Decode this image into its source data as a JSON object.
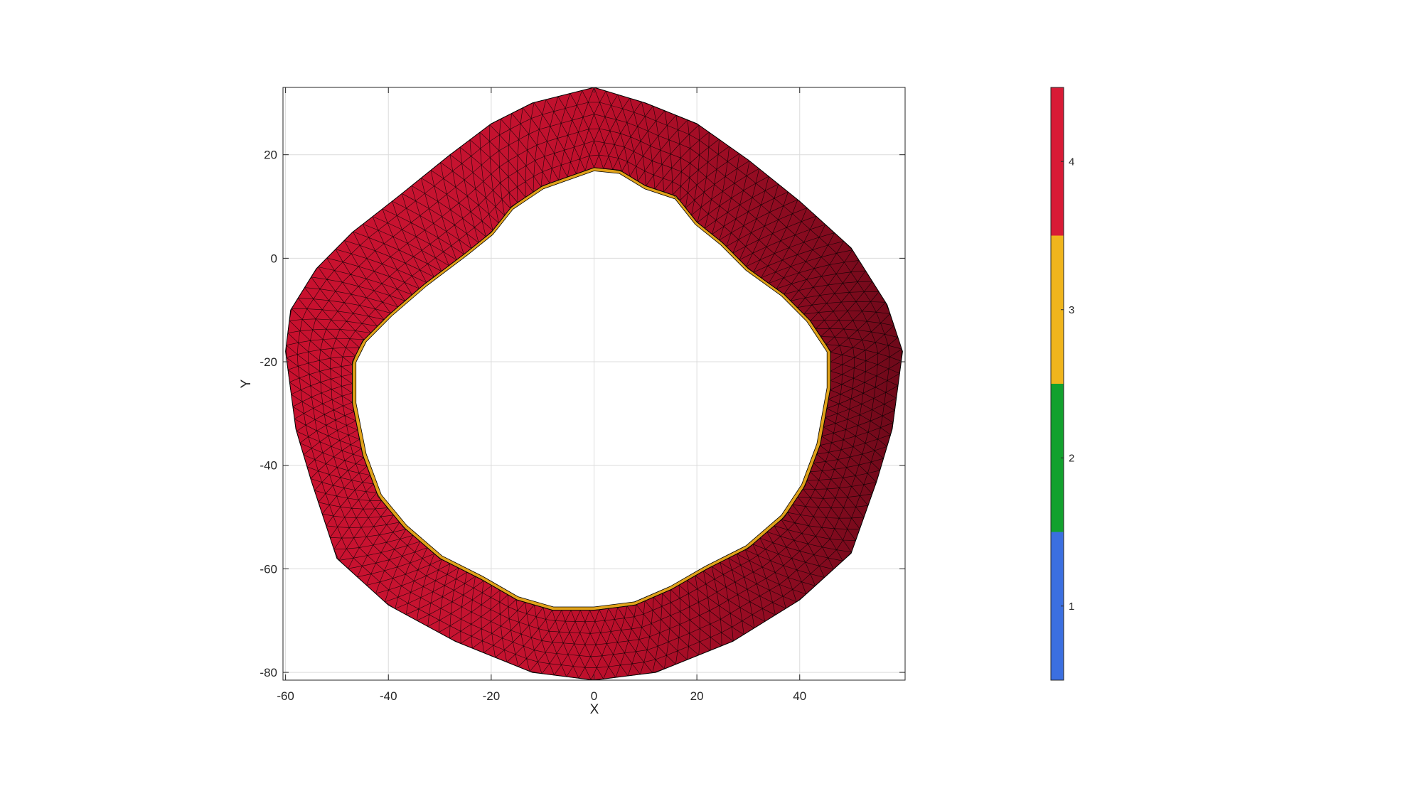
{
  "chart_data": {
    "type": "heatmap",
    "subtype": "triangulated-mesh-surface",
    "title": "",
    "xlabel": "X",
    "ylabel": "Y",
    "xlim": [
      -60.5,
      60.5
    ],
    "ylim": [
      -81.5,
      33
    ],
    "xticks": [
      -60,
      -40,
      -20,
      0,
      20,
      40
    ],
    "yticks": [
      -80,
      -60,
      -40,
      -20,
      0,
      20
    ],
    "grid": true,
    "mesh": {
      "outer_boundary": [
        [
          0,
          33
        ],
        [
          10,
          30
        ],
        [
          20,
          26
        ],
        [
          30,
          19
        ],
        [
          40,
          11
        ],
        [
          50,
          2
        ],
        [
          57,
          -9
        ],
        [
          60,
          -18
        ],
        [
          58,
          -33
        ],
        [
          55,
          -43
        ],
        [
          50,
          -57
        ],
        [
          40,
          -66
        ],
        [
          27,
          -74
        ],
        [
          12,
          -80
        ],
        [
          0,
          -81.5
        ],
        [
          -12,
          -80
        ],
        [
          -27,
          -74
        ],
        [
          -40,
          -67
        ],
        [
          -50,
          -58
        ],
        [
          -55,
          -43
        ],
        [
          -58,
          -33
        ],
        [
          -60,
          -18
        ],
        [
          -59,
          -10
        ],
        [
          -54,
          -2
        ],
        [
          -47,
          5
        ],
        [
          -38,
          12
        ],
        [
          -28,
          20
        ],
        [
          -20,
          26
        ],
        [
          -12,
          30
        ]
      ],
      "inner_boundary": [
        [
          0,
          17.5
        ],
        [
          5,
          17
        ],
        [
          10,
          14
        ],
        [
          16,
          12
        ],
        [
          20,
          7
        ],
        [
          25,
          3
        ],
        [
          30,
          -2
        ],
        [
          37,
          -7
        ],
        [
          42,
          -12
        ],
        [
          46,
          -18
        ],
        [
          46,
          -25
        ],
        [
          44,
          -36
        ],
        [
          41,
          -44
        ],
        [
          37,
          -50
        ],
        [
          30,
          -56
        ],
        [
          22,
          -60
        ],
        [
          15,
          -64
        ],
        [
          8,
          -67
        ],
        [
          0,
          -68
        ],
        [
          -8,
          -68
        ],
        [
          -15,
          -66
        ],
        [
          -22,
          -62
        ],
        [
          -30,
          -58
        ],
        [
          -37,
          -52
        ],
        [
          -42,
          -46
        ],
        [
          -45,
          -38
        ],
        [
          -47,
          -28
        ],
        [
          -47,
          -20
        ],
        [
          -45,
          -16
        ],
        [
          -40,
          -11
        ],
        [
          -33,
          -5
        ],
        [
          -25,
          1
        ],
        [
          -20,
          5
        ],
        [
          -16,
          10
        ],
        [
          -10,
          14
        ]
      ],
      "face_color": "#c8102e",
      "inner_wall_color": "#e0a21a",
      "edge_color": "#000000"
    },
    "colorbar": {
      "labels": [
        "1",
        "2",
        "3",
        "4"
      ],
      "colors": [
        "#3b6fe0",
        "#12a12e",
        "#f0b51c",
        "#d81b36"
      ],
      "range": [
        0.5,
        4.5
      ]
    }
  }
}
